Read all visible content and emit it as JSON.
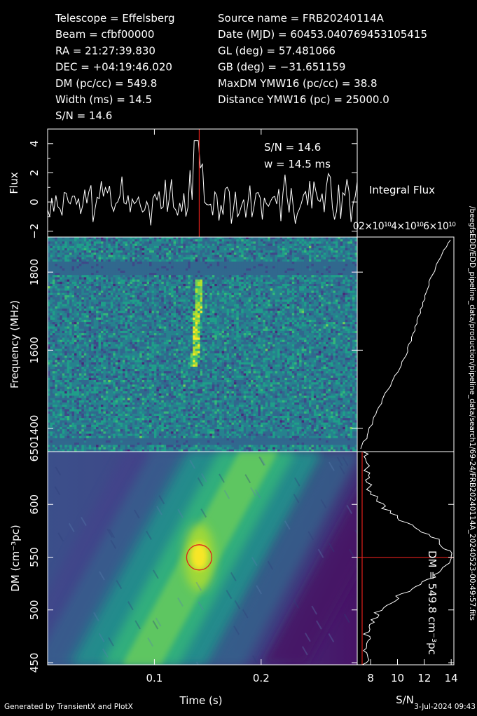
{
  "header": {
    "left": [
      "Telescope = Effelsberg",
      "Beam = cfbf00000",
      "RA = 21:27:39.830",
      "DEC = +04:19:46.020",
      "DM (pc/cc) = 549.8",
      "Width (ms) = 14.5",
      "S/N = 14.6"
    ],
    "right": [
      "Source name = FRB20240114A",
      "Date (MJD) = 60453.040769453105415",
      "GL (deg) = 57.481066",
      "GB (deg) = −31.651159",
      "MaxDM YMW16  (pc/cc) = 38.8",
      "Distance YMW16 (pc) = 25000.0"
    ]
  },
  "footer": {
    "generated_by": "Generated by TransientX and PlotX",
    "date": "3-Jul-2024 09:43",
    "filepath": "/beegfsEDD/EDD_pipeline_data/production/pipeline_data/search1/69-24/FRB20240114A_20240523-00:49:57.fits"
  },
  "colors": {
    "background": "#000000",
    "axes": "#ffffff",
    "marker": "#e0201c",
    "colormap": [
      "#440154",
      "#3b528b",
      "#21918c",
      "#5ec962",
      "#fde725"
    ]
  },
  "chart_data": [
    {
      "id": "flux-profile",
      "type": "line",
      "ylabel": "Flux",
      "ylim": [
        -2.4,
        5.0
      ],
      "yticks": [
        -2,
        0,
        2,
        4
      ],
      "xlim": [
        0.0,
        0.29
      ],
      "annotations": [
        "S/N = 14.6",
        "w = 14.5 ms"
      ],
      "marker_x": 0.142,
      "peak_time": 0.14,
      "peak_flux": 4.2
    },
    {
      "id": "dynamic-spectrum",
      "type": "heatmap",
      "ylabel": "Frequency (MHz)",
      "ylim": [
        1340,
        1890
      ],
      "yticks": [
        1400,
        1600,
        1800
      ],
      "xlim": [
        0.0,
        0.29
      ],
      "colormap": "viridis"
    },
    {
      "id": "integral-flux",
      "type": "line",
      "title": "Integral Flux",
      "xtick_text": "02×10¹⁰4×10¹⁰6×10¹⁰"
    },
    {
      "id": "dm-time",
      "type": "heatmap",
      "xlabel": "Time (s)",
      "ylabel": "DM (cm⁻³pc)",
      "xlim": [
        0.0,
        0.29
      ],
      "xticks": [
        0.1,
        0.2
      ],
      "xtick_labels": [
        "0.1",
        "0.2"
      ],
      "ylim": [
        448,
        650
      ],
      "yticks": [
        450,
        500,
        550,
        600,
        650
      ],
      "colormap": "viridis",
      "best_dm": 549.8,
      "best_time": 0.142
    },
    {
      "id": "snr-dm",
      "type": "line",
      "xlabel": "S/N",
      "xlim": [
        7.0,
        14.2
      ],
      "xticks": [
        8,
        10,
        12,
        14
      ],
      "annotation": "DM = 549.8 cm⁻³pc",
      "marker_dm": 549.8,
      "peak_snr": 14.0
    }
  ]
}
